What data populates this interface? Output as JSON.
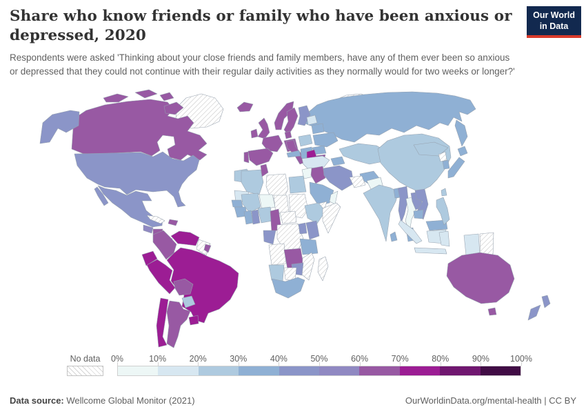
{
  "header": {
    "title": "Share who know friends or family who have been anxious or depressed, 2020",
    "logo_line1": "Our World",
    "logo_line2": "in Data",
    "logo_bg": "#12294f",
    "logo_accent": "#d93a2b"
  },
  "subtitle": "Respondents were asked 'Thinking about your close friends and family members, have any of them ever been so anxious or depressed that they could not continue with their regular daily activities as they normally would for two weeks or longer?'",
  "legend": {
    "no_data_label": "No data",
    "tick_labels": [
      "0%",
      "10%",
      "20%",
      "30%",
      "40%",
      "50%",
      "60%",
      "70%",
      "80%",
      "90%",
      "100%"
    ],
    "bins": [
      "0-10%",
      "10-20%",
      "20-30%",
      "30-40%",
      "40-50%",
      "50-60%",
      "60-70%",
      "70-80%",
      "80-90%",
      "90-100%"
    ],
    "colors": [
      "#edf7f6",
      "#d7e7f1",
      "#aecadf",
      "#8fb0d4",
      "#8b95c8",
      "#9089c2",
      "#9859a3",
      "#9c1d94",
      "#701770",
      "#410c45"
    ],
    "border_color": "#96a1ae"
  },
  "footer": {
    "source_label": "Data source:",
    "source_value": "Wellcome Global Monitor (2021)",
    "right_text": "OurWorldinData.org/mental-health | CC BY"
  },
  "chart_data": {
    "type": "choropleth",
    "title": "Share who know friends or family who have been anxious or depressed, 2020",
    "unit": "share of respondents",
    "legend_bins": [
      "0-10%",
      "10-20%",
      "20-30%",
      "30-40%",
      "40-50%",
      "50-60%",
      "60-70%",
      "70-80%",
      "80-90%",
      "90-100%",
      "No data"
    ],
    "source": "Wellcome Global Monitor (2021)",
    "regions": {
      "greenland": "No data",
      "svalbard": "No data",
      "iceland": "60-70%",
      "canada": "60-70%",
      "united-states": "40-50%",
      "mexico": "40-50%",
      "guatemala": "50-60%",
      "nicaragua": "60-70%",
      "panama": "50-60%",
      "cuba": "No data",
      "dominican-republic": "60-70%",
      "colombia": "60-70%",
      "venezuela": "70-80%",
      "guyanas": "No data",
      "french-guiana": "60-70%",
      "ecuador": "70-80%",
      "peru": "70-80%",
      "brazil": "70-80%",
      "bolivia": "60-70%",
      "paraguay": "20-30%",
      "uruguay": "70-80%",
      "chile": "70-80%",
      "argentina": "60-70%",
      "norway": "60-70%",
      "sweden": "60-70%",
      "finland": "40-50%",
      "baltic-states": "10-20%",
      "denmark": "60-70%",
      "united-kingdom": "60-70%",
      "ireland": "60-70%",
      "germany": "60-70%",
      "france": "60-70%",
      "spain": "60-70%",
      "portugal": "60-70%",
      "italy": "60-70%",
      "czechia": "30-40%",
      "poland": "20-30%",
      "belarus": "30-40%",
      "ukraine": "30-40%",
      "romania": "30-40%",
      "balkans": "30-40%",
      "bulgaria": "60-70%",
      "greece": "70-80%",
      "russia": "30-40%",
      "kazakhstan": "20-30%",
      "uzbekistan": "30-40%",
      "turkmenistan": "No data",
      "caucasus": "30-40%",
      "turkey": "10-20%",
      "syria": "0-10%",
      "iraq": "60-70%",
      "iran": "40-50%",
      "afghanistan": "0-10%",
      "pakistan": "20-30%",
      "saudi-arabia": "30-40%",
      "yemen": "No data",
      "oman": "0-10%",
      "morocco": "20-30%",
      "algeria": "20-30%",
      "tunisia": "60-70%",
      "libya": "No data",
      "egypt": "20-30%",
      "mauritania": "10-20%",
      "mali": "20-30%",
      "niger": "0-10%",
      "chad": "No data",
      "sudan": "No data",
      "ethiopia": "20-30%",
      "somalia": "No data",
      "senegal": "30-40%",
      "guinea": "30-40%",
      "ivory-coast": "30-40%",
      "ghana": "40-50%",
      "nigeria": "20-30%",
      "cameroon": "60-70%",
      "central-african-republic": "No data",
      "congo": "40-50%",
      "dr-congo": "No data",
      "uganda": "40-50%",
      "kenya": "40-50%",
      "tanzania": "30-40%",
      "angola": "No data",
      "zambia": "60-70%",
      "mozambique": "No data",
      "zimbabwe": "40-50%",
      "namibia": "20-30%",
      "botswana": "No data",
      "south-africa": "30-40%",
      "madagascar": "No data",
      "india": "20-30%",
      "bangladesh": "30-40%",
      "sri-lanka": "30-40%",
      "china": "20-30%",
      "mongolia": "20-30%",
      "myanmar": "40-50%",
      "thailand": "0-10%",
      "laos": "40-50%",
      "vietnam": "40-50%",
      "cambodia": "30-40%",
      "malaysia": "30-40%",
      "indonesia": "10-20%",
      "papua-new-guinea": "No data",
      "philippines": "20-30%",
      "north-korea": "No data",
      "south-korea": "30-40%",
      "japan": "30-40%",
      "taiwan": "20-30%",
      "australia": "60-70%",
      "new-zealand": "40-50%"
    }
  }
}
